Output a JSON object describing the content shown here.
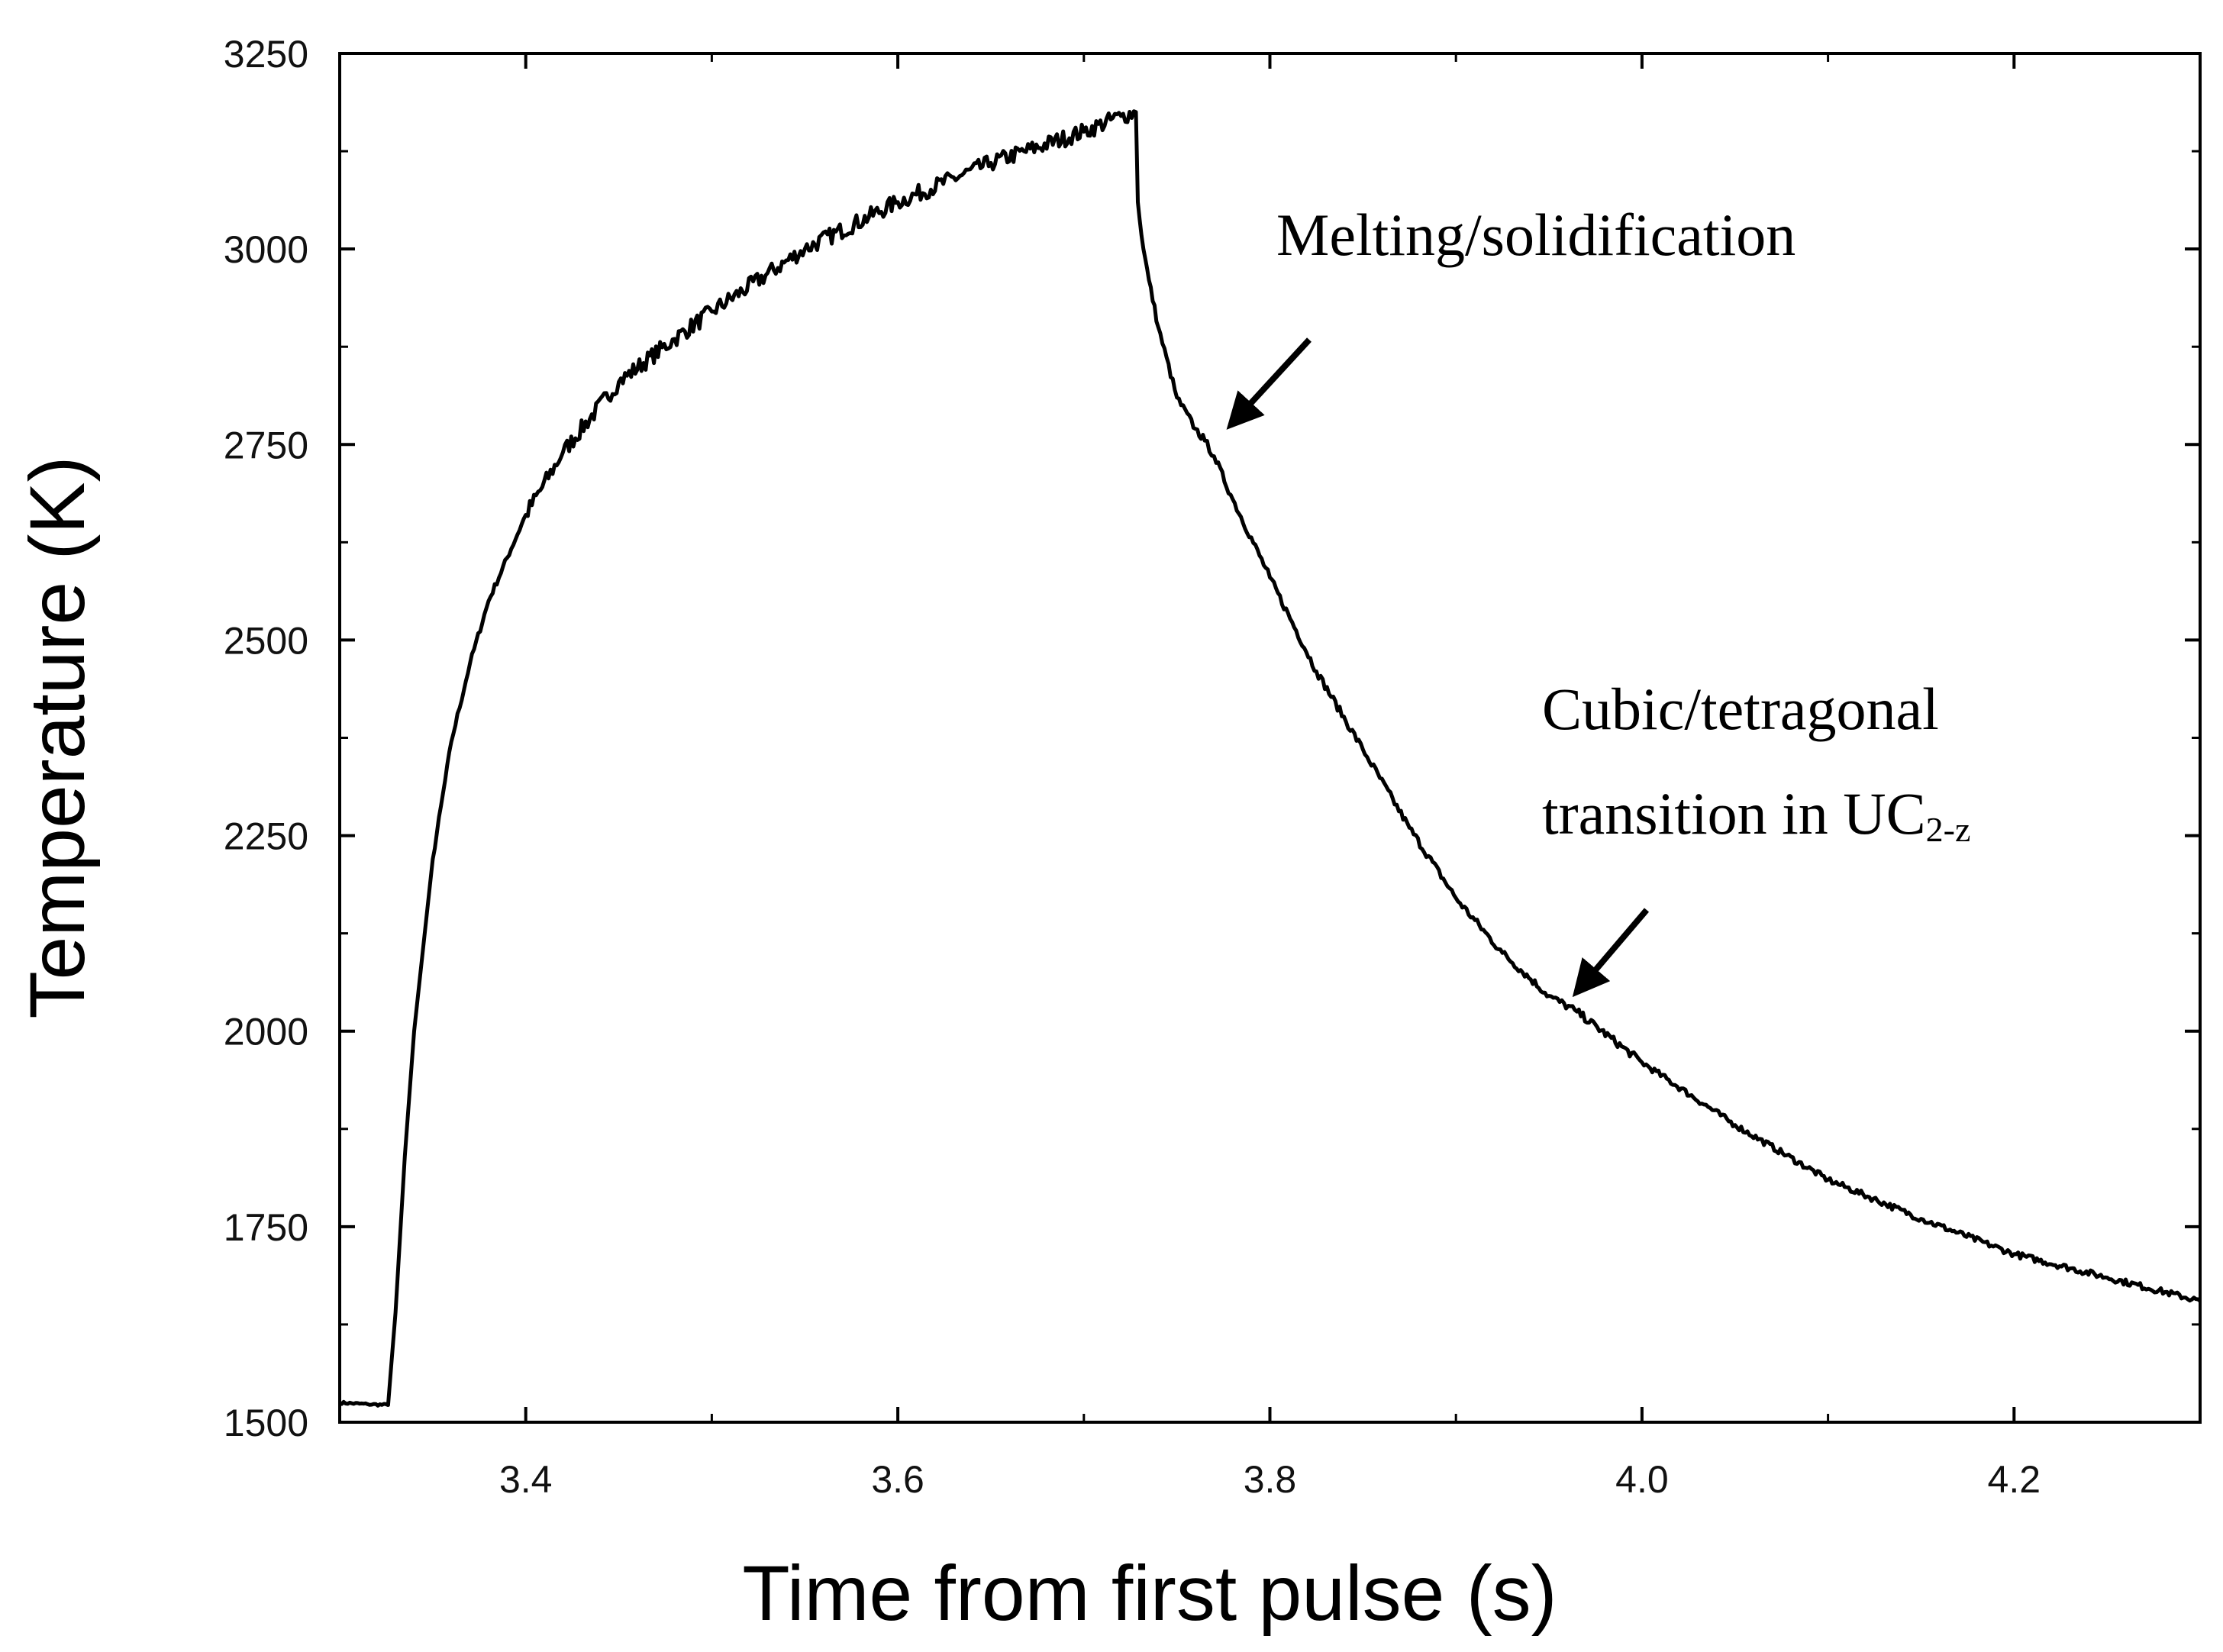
{
  "chart_data": {
    "type": "line",
    "title": "",
    "xlabel": "Time from first pulse (s)",
    "ylabel": "Temperature (K)",
    "xlim": [
      3.3,
      4.3
    ],
    "ylim": [
      1500,
      3250
    ],
    "xticks": [
      3.4,
      3.6,
      3.8,
      4.0,
      4.2
    ],
    "xtick_labels": [
      "3.4",
      "3.6",
      "3.8",
      "4.0",
      "4.2"
    ],
    "yticks": [
      1500,
      1750,
      2000,
      2250,
      2500,
      2750,
      3000,
      3250
    ],
    "ytick_labels": [
      "1500",
      "1750",
      "2000",
      "2250",
      "2500",
      "2750",
      "3000",
      "3250"
    ],
    "grid": false,
    "series": [
      {
        "name": "Temperature",
        "x": [
          3.3,
          3.315,
          3.326,
          3.33,
          3.335,
          3.34,
          3.35,
          3.36,
          3.37,
          3.38,
          3.4,
          3.42,
          3.45,
          3.48,
          3.5,
          3.55,
          3.6,
          3.65,
          3.7,
          3.72,
          3.728,
          3.729,
          3.732,
          3.735,
          3.74,
          3.75,
          3.76,
          3.765,
          3.77,
          3.78,
          3.8,
          3.825,
          3.85,
          3.875,
          3.9,
          3.925,
          3.95,
          3.965,
          4.0,
          4.05,
          4.1,
          4.15,
          4.2,
          4.25,
          4.3
        ],
        "y": [
          1525,
          1523,
          1522,
          1640,
          1840,
          2000,
          2220,
          2370,
          2470,
          2550,
          2660,
          2740,
          2830,
          2885,
          2920,
          3000,
          3060,
          3110,
          3150,
          3170,
          3175,
          3060,
          3000,
          2960,
          2900,
          2810,
          2770,
          2755,
          2735,
          2680,
          2580,
          2460,
          2360,
          2260,
          2170,
          2100,
          2045,
          2025,
          1960,
          1880,
          1810,
          1760,
          1715,
          1685,
          1655
        ]
      }
    ],
    "annotations": [
      {
        "text": "Melting/solidification",
        "x": 3.765,
        "y": 2760
      },
      {
        "text": "Cubic/tetragonal",
        "x": 3.955,
        "y": 2035
      },
      {
        "text_main": "transition in UC",
        "text_sub": "2-z"
      }
    ]
  }
}
